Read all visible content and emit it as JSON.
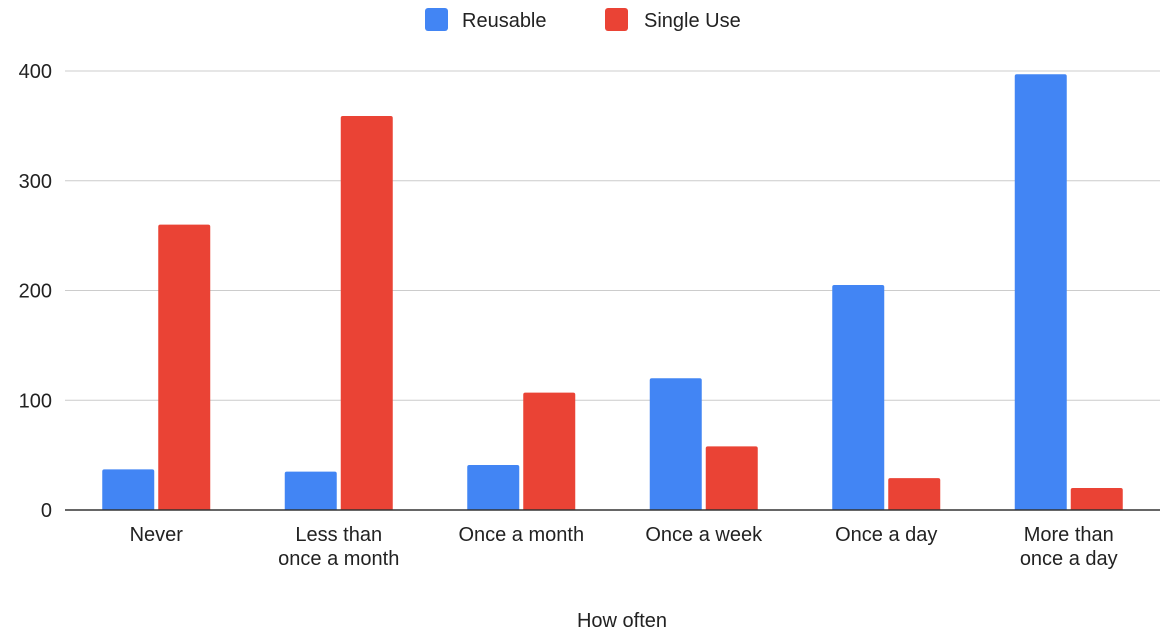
{
  "chart_data": {
    "type": "bar",
    "title": "",
    "xlabel": "How often",
    "ylabel": "",
    "ylim": [
      0,
      400
    ],
    "yticks": [
      0,
      100,
      200,
      300,
      400
    ],
    "grid": true,
    "legend_position": "top",
    "categories": [
      [
        "Never"
      ],
      [
        "Less than",
        "once a month"
      ],
      [
        "Once a month"
      ],
      [
        "Once a week"
      ],
      [
        "Once a day"
      ],
      [
        "More than",
        "once a day"
      ]
    ],
    "series": [
      {
        "name": "Reusable",
        "color": "#4285f4",
        "values": [
          37,
          35,
          41,
          120,
          205,
          397
        ]
      },
      {
        "name": "Single Use",
        "color": "#ea4335",
        "values": [
          260,
          359,
          107,
          58,
          29,
          20
        ]
      }
    ]
  }
}
